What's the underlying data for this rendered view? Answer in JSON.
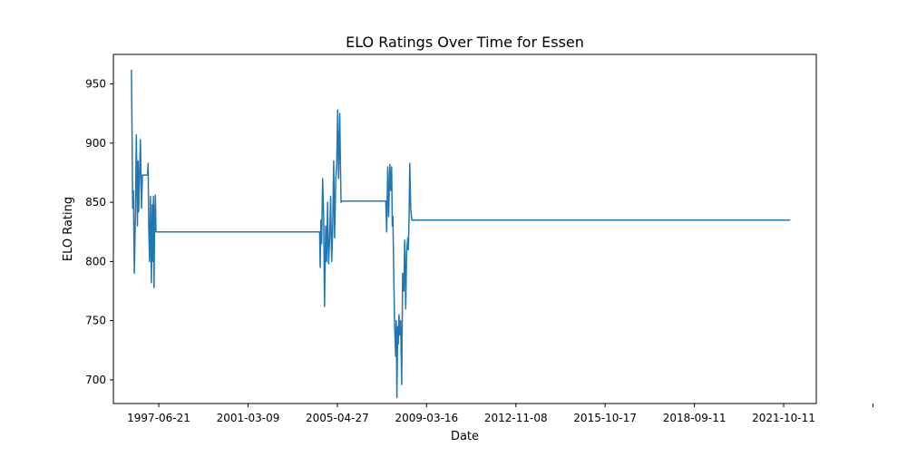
{
  "chart_data": {
    "type": "line",
    "title": "ELO Ratings Over Time for Essen",
    "xlabel": "Date",
    "ylabel": "ELO Rating",
    "x_type": "date",
    "xlim": [
      "1995-08-01",
      "2024-11-01"
    ],
    "ylim": [
      680,
      975
    ],
    "x_ticks": [
      "1997-06-21",
      "2001-03-09",
      "2005-04-27",
      "2009-03-16",
      "2012-11-08",
      "2015-10-17",
      "2018-09-11",
      "2021-10-11",
      ""
    ],
    "y_ticks": [
      700,
      750,
      800,
      850,
      900,
      950
    ],
    "grid": false,
    "legend": "none",
    "color": "#1f77b4",
    "series": [
      {
        "x": [
          "1996-05-01",
          "1996-05-10",
          "1996-05-20",
          "1996-06-01",
          "1996-06-15",
          "1996-07-01",
          "1996-07-15",
          "1996-08-01",
          "1996-08-10",
          "1996-08-20",
          "1996-09-01",
          "1996-09-15",
          "1996-10-01",
          "1996-10-15",
          "1996-11-01",
          "1996-11-15",
          "1996-12-01",
          "1996-12-15",
          "1997-01-01",
          "1997-01-10",
          "1997-01-20",
          "1997-02-01",
          "1997-02-15",
          "1997-03-01",
          "1997-03-15",
          "1997-03-25",
          "1997-04-01",
          "1997-04-10",
          "1997-04-20",
          "1997-05-01",
          "1997-05-10",
          "1997-05-20",
          "1997-06-01",
          "1997-06-10",
          "1997-06-20",
          "1997-06-30",
          "1997-07-10",
          "1997-07-20",
          "1997-08-01",
          "2004-03-01",
          "2004-03-10",
          "2004-03-20",
          "2004-04-01",
          "2004-04-15",
          "2004-05-01",
          "2004-05-15",
          "2004-06-01",
          "2004-06-15",
          "2004-07-01",
          "2004-07-15",
          "2004-08-01",
          "2004-08-15",
          "2004-09-01",
          "2004-09-15",
          "2004-10-01",
          "2004-10-15",
          "2004-11-01",
          "2004-11-15",
          "2004-12-01",
          "2004-12-15",
          "2005-01-01",
          "2005-01-10",
          "2005-01-20",
          "2005-02-01",
          "2005-02-10",
          "2005-02-20",
          "2005-03-01",
          "2005-03-10",
          "2005-03-20",
          "2005-04-01",
          "2005-04-15",
          "2005-05-01",
          "2005-05-15",
          "2005-06-01",
          "2005-06-15",
          "2005-07-01",
          "2006-12-01",
          "2006-12-15",
          "2007-01-01",
          "2007-01-15",
          "2007-02-01",
          "2007-02-15",
          "2007-03-01",
          "2007-03-10",
          "2007-03-20",
          "2007-04-01",
          "2007-04-15",
          "2007-05-01",
          "2007-05-10",
          "2007-05-20",
          "2007-06-01",
          "2007-06-10",
          "2007-06-20",
          "2007-07-01",
          "2007-07-15",
          "2007-08-01",
          "2007-08-15",
          "2007-09-01",
          "2007-09-15",
          "2007-10-01",
          "2007-10-15",
          "2007-11-01",
          "2007-11-10",
          "2007-11-20",
          "2007-12-01",
          "2007-12-15",
          "2008-01-01",
          "2008-01-15",
          "2008-02-01",
          "2008-02-15",
          "2008-03-01",
          "2008-03-15",
          "2008-04-01",
          "2008-04-15",
          "2008-05-01",
          "2008-05-15",
          "2008-06-01",
          "2023-10-01"
        ],
        "y": [
          962,
          915,
          845,
          860,
          790,
          840,
          907,
          830,
          885,
          842,
          872,
          903,
          845,
          873,
          873,
          873,
          873,
          873,
          873,
          883,
          830,
          800,
          855,
          782,
          848,
          800,
          855,
          778,
          835,
          856,
          825,
          825,
          825,
          825,
          825,
          825,
          825,
          825,
          825,
          825,
          795,
          835,
          815,
          870,
          840,
          762,
          830,
          800,
          850,
          798,
          820,
          855,
          800,
          825,
          885,
          820,
          870,
          880,
          928,
          870,
          925,
          890,
          850,
          851,
          851,
          851,
          851,
          851,
          851,
          851,
          851,
          851,
          851,
          851,
          851,
          851,
          851,
          825,
          880,
          838,
          882,
          860,
          880,
          830,
          838,
          790,
          745,
          720,
          750,
          685,
          745,
          730,
          755,
          738,
          750,
          696,
          790,
          775,
          818,
          760,
          808,
          820,
          810,
          836,
          883,
          845,
          835,
          835,
          835,
          835,
          835,
          835,
          835,
          835,
          835,
          835,
          835,
          835
        ]
      }
    ]
  }
}
